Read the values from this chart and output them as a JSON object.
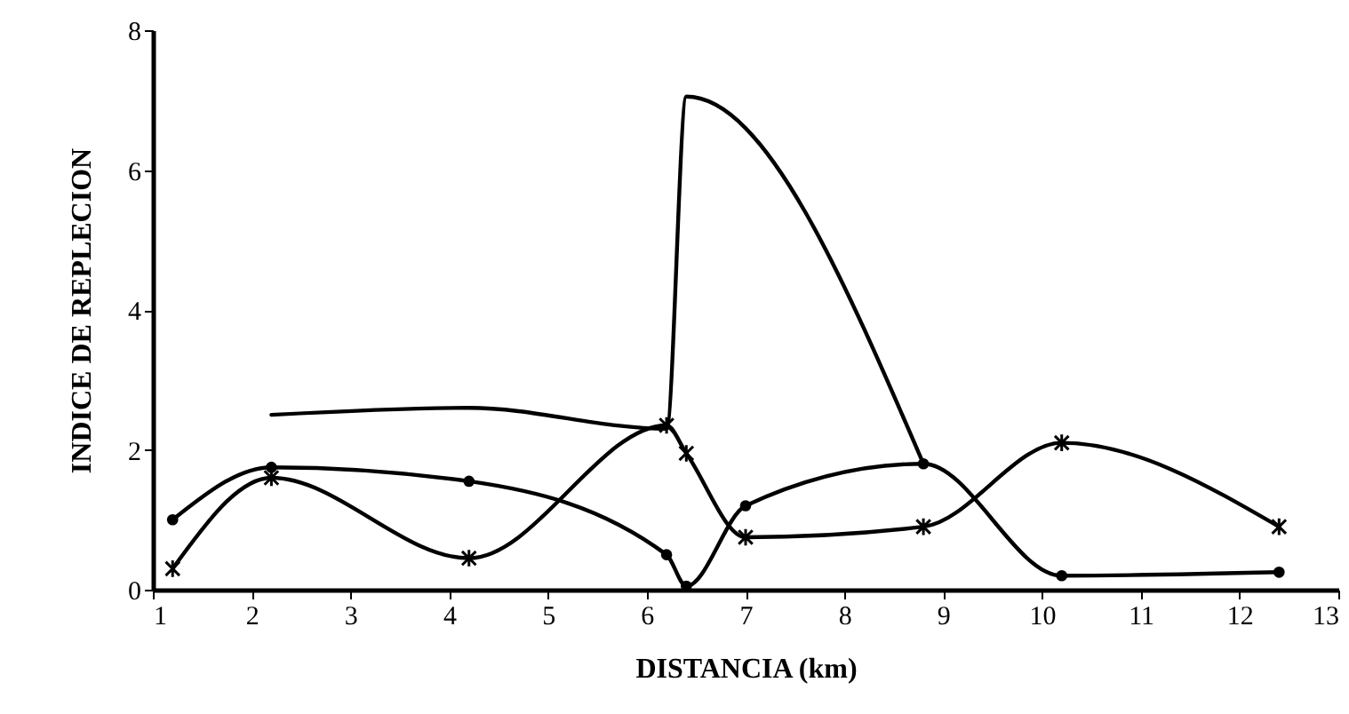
{
  "chart_data": {
    "type": "line",
    "xlabel": "DISTANCIA (km)",
    "ylabel": "INDICE DE REPLECION",
    "xlim": [
      1,
      13
    ],
    "xticks": [
      1,
      2,
      3,
      4,
      5,
      6,
      7,
      8,
      9,
      10,
      11,
      12,
      13
    ],
    "ylim": [
      0,
      8
    ],
    "yticks": [
      0,
      2,
      4,
      6,
      8
    ],
    "grid": false,
    "line_style": "solid",
    "series": [
      {
        "color": "#000000",
        "marker": "circle",
        "x": [
          1.2,
          2.2,
          4.2,
          6.2,
          6.4,
          7,
          8.8,
          10.2,
          12.4
        ],
        "values": [
          1.0,
          1.75,
          1.55,
          0.5,
          0.05,
          1.2,
          1.8,
          0.2,
          0.25
        ]
      },
      {
        "color": "#000000",
        "marker": "cross",
        "x": [
          1.2,
          2.2,
          4.2,
          6.2,
          6.4,
          7,
          8.8,
          10.2,
          12.4
        ],
        "values": [
          0.3,
          1.6,
          0.45,
          2.35,
          1.95,
          0.75,
          0.9,
          2.1,
          0.9
        ]
      },
      {
        "color": "#000000",
        "marker": "none",
        "x": [
          2.2,
          4.2,
          6.2,
          6.4,
          8.8
        ],
        "values": [
          2.5,
          2.6,
          2.3,
          7.05,
          1.8
        ]
      }
    ]
  }
}
